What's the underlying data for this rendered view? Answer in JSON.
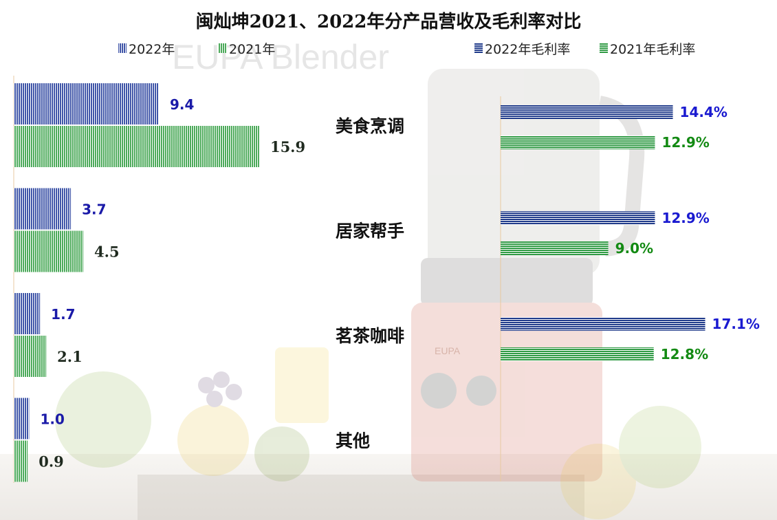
{
  "colors": {
    "series_2022": "#3f55a8",
    "series_2021": "#4caa5a",
    "label_2022": "#1a1ad0",
    "label_2021": "#138a13"
  },
  "chart_data": [
    {
      "type": "bar",
      "orientation": "horizontal",
      "title": "闽灿坤2021、2022年分产品营收及毛利率对比",
      "categories": [
        "美食烹调",
        "居家帮手",
        "茗茶咖啡",
        "其他"
      ],
      "series": [
        {
          "name": "2022年",
          "values": [
            9.4,
            3.7,
            1.7,
            1.0
          ]
        },
        {
          "name": "2021年",
          "values": [
            15.9,
            4.5,
            2.1,
            0.9
          ]
        }
      ],
      "data_labels": true,
      "legend": "top-left",
      "grid": false
    },
    {
      "type": "bar",
      "orientation": "horizontal",
      "categories": [
        "美食烹调",
        "居家帮手",
        "茗茶咖啡",
        "其他"
      ],
      "series": [
        {
          "name": "2022年毛利率",
          "values": [
            14.4,
            12.9,
            17.1,
            null
          ]
        },
        {
          "name": "2021年毛利率",
          "values": [
            12.9,
            9.0,
            12.8,
            null
          ]
        }
      ],
      "unit": "%",
      "data_labels": true,
      "legend": "top-right",
      "grid": false
    }
  ],
  "background": {
    "watermark_text": "EUPA Blender",
    "watermark_brand": "EUPA"
  }
}
